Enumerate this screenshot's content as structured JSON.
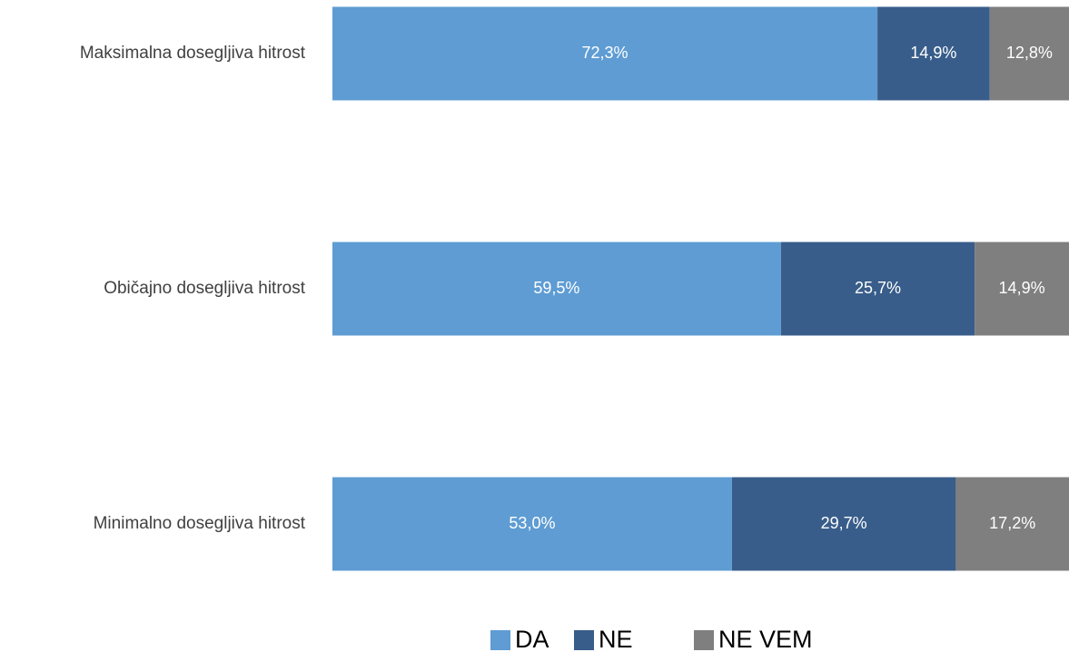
{
  "chart_data": {
    "type": "stacked_bar_horizontal",
    "categories": [
      "Maksimalna dosegljiva hitrost",
      "Običajno dosegljiva hitrost",
      "Minimalno dosegljiva hitrost"
    ],
    "series": [
      {
        "name": "DA",
        "color": "#5e9cd3",
        "values": [
          72.3,
          59.5,
          53.0
        ],
        "value_labels": [
          "72,3%",
          "59,5%",
          "53,0%"
        ]
      },
      {
        "name": "NE",
        "color": "#385d8a",
        "values": [
          14.9,
          25.7,
          29.7
        ],
        "value_labels": [
          "14,9%",
          "25,7%",
          "29,7%"
        ]
      },
      {
        "name": "NE VEM",
        "color": "#7f7f7f",
        "values": [
          12.8,
          14.9,
          17.2
        ],
        "value_labels": [
          "12,8%",
          "14,9%",
          "17,2%"
        ]
      }
    ],
    "xlim": [
      0,
      100
    ],
    "legend": "bottom"
  }
}
